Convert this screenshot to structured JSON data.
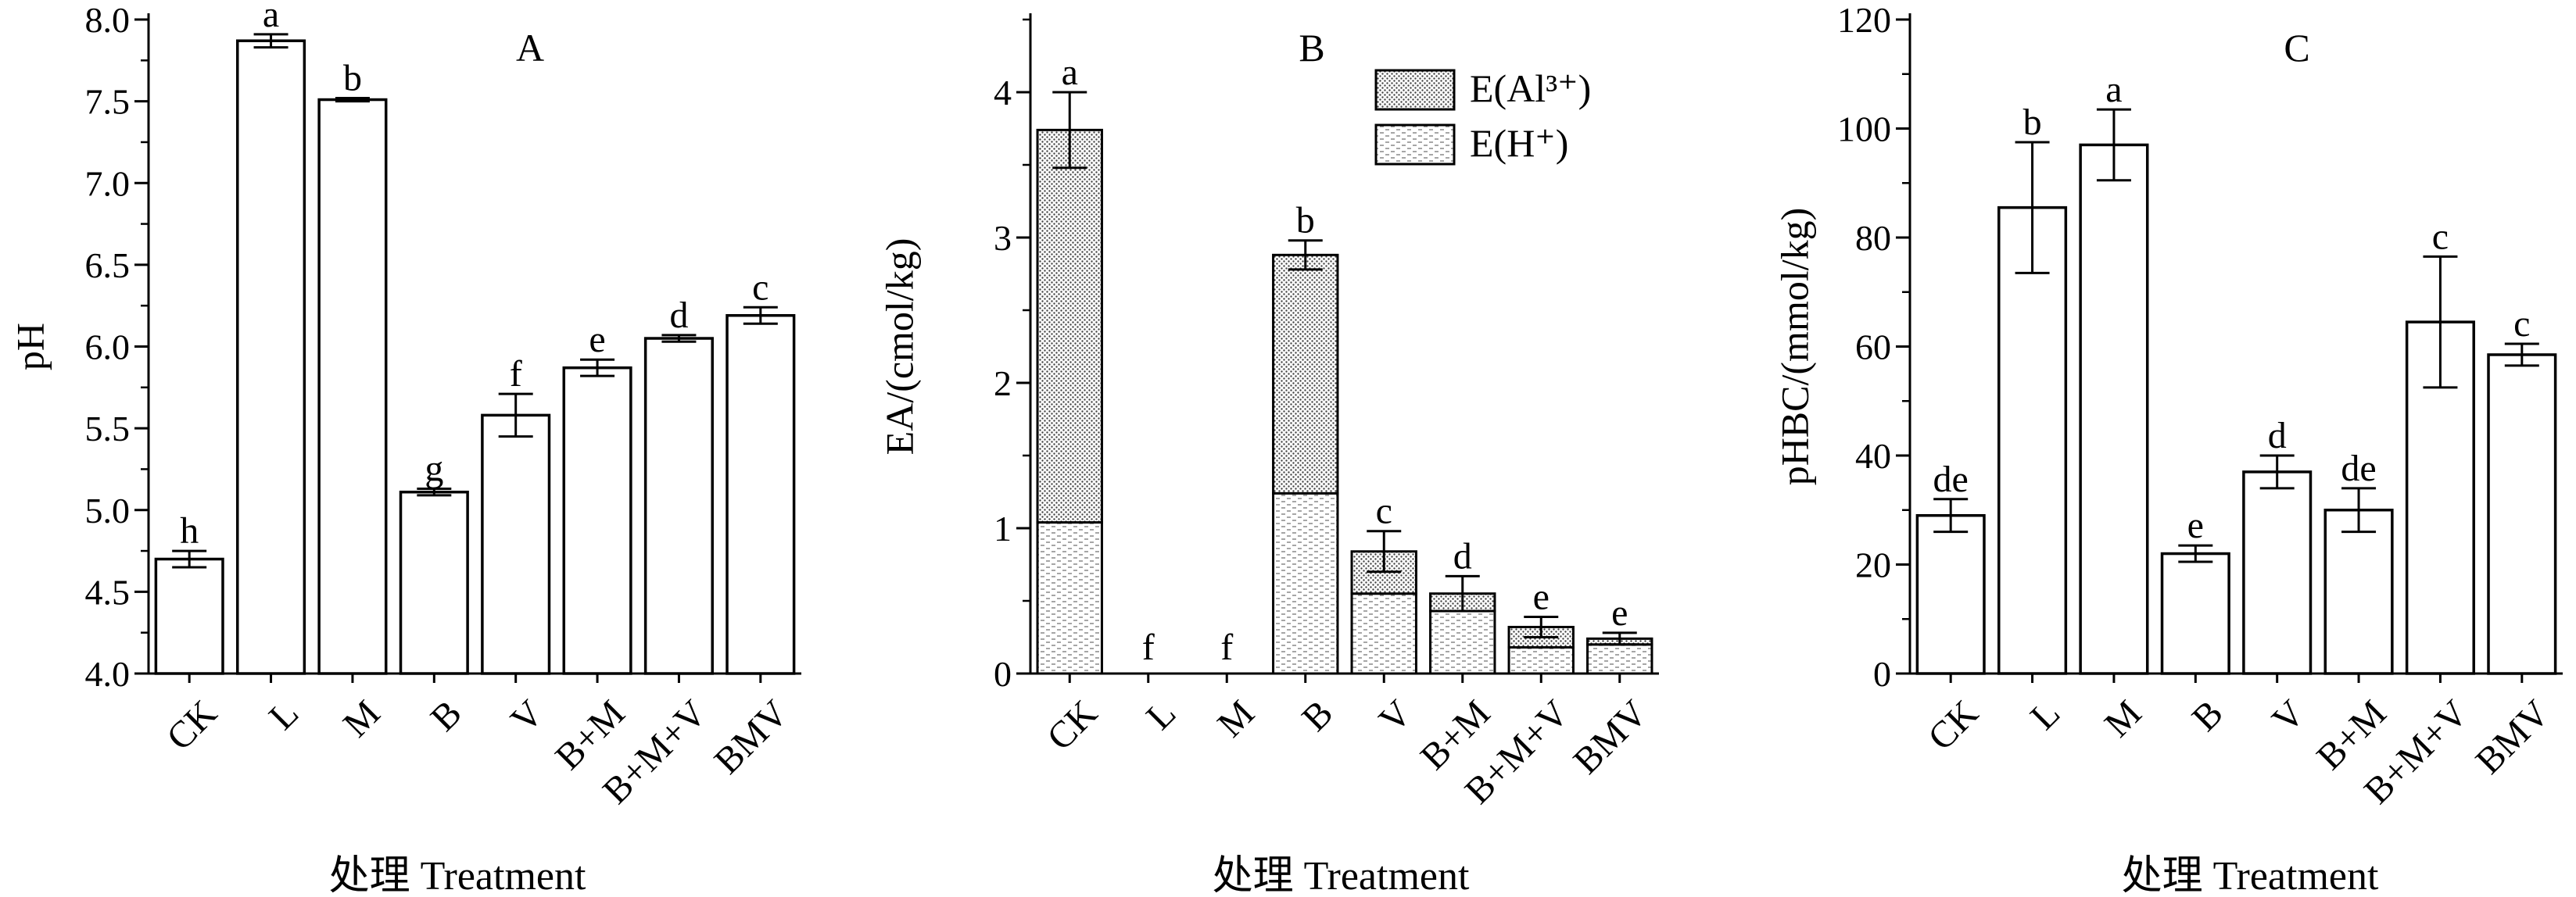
{
  "chart_data": [
    {
      "type": "bar",
      "panel_label": "A",
      "xlabel": "处理 Treatment",
      "ylabel": "pH",
      "categories": [
        "CK",
        "L",
        "M",
        "B",
        "V",
        "B+M",
        "B+M+V",
        "BMV"
      ],
      "ylim": [
        4.0,
        8.0
      ],
      "yticks": [
        "4.0",
        "4.5",
        "5.0",
        "5.5",
        "6.0",
        "6.5",
        "7.0",
        "7.5",
        "8.0"
      ],
      "series": [
        {
          "values": [
            4.7,
            7.87,
            7.51,
            5.11,
            5.58,
            5.87,
            6.05,
            6.19
          ]
        }
      ],
      "errors": [
        0.05,
        0.04,
        0.01,
        0.02,
        0.13,
        0.05,
        0.02,
        0.05
      ],
      "letters": [
        "h",
        "a",
        "b",
        "g",
        "f",
        "e",
        "d",
        "c"
      ]
    },
    {
      "type": "bar",
      "stacked": true,
      "panel_label": "B",
      "xlabel": "处理 Treatment",
      "ylabel": "EA/(cmol/kg)",
      "categories": [
        "CK",
        "L",
        "M",
        "B",
        "V",
        "B+M",
        "B+M+V",
        "BMV"
      ],
      "ylim": [
        0,
        4.5
      ],
      "yticks": [
        "0",
        "1",
        "2",
        "3",
        "4"
      ],
      "series": [
        {
          "name": "E(H⁺)",
          "values": [
            1.04,
            0,
            0,
            1.24,
            0.55,
            0.43,
            0.18,
            0.2
          ]
        },
        {
          "name": "E(Al³⁺)",
          "values": [
            2.7,
            0,
            0,
            1.64,
            0.29,
            0.12,
            0.14,
            0.04
          ]
        }
      ],
      "totals": [
        3.74,
        0,
        0,
        2.88,
        0.84,
        0.55,
        0.32,
        0.24
      ],
      "errors": [
        0.26,
        0,
        0,
        0.1,
        0.14,
        0.12,
        0.07,
        0.04
      ],
      "letters": [
        "a",
        "f",
        "f",
        "b",
        "c",
        "d",
        "e",
        "e"
      ],
      "legend": [
        "E(Al³⁺)",
        "E(H⁺)"
      ],
      "legend_position": "top-right"
    },
    {
      "type": "bar",
      "panel_label": "C",
      "xlabel": "处理 Treatment",
      "ylabel": "pHBC/(mmol/kg)",
      "categories": [
        "CK",
        "L",
        "M",
        "B",
        "V",
        "B+M",
        "B+M+V",
        "BMV"
      ],
      "ylim": [
        0,
        120
      ],
      "yticks": [
        "0",
        "20",
        "40",
        "60",
        "80",
        "100",
        "120"
      ],
      "series": [
        {
          "values": [
            29,
            85.5,
            97,
            22,
            37,
            30,
            64.5,
            58.5
          ]
        }
      ],
      "errors": [
        3,
        12,
        6.5,
        1.5,
        3,
        4,
        12,
        2
      ],
      "letters": [
        "de",
        "b",
        "a",
        "e",
        "d",
        "de",
        "c",
        "c"
      ]
    }
  ]
}
